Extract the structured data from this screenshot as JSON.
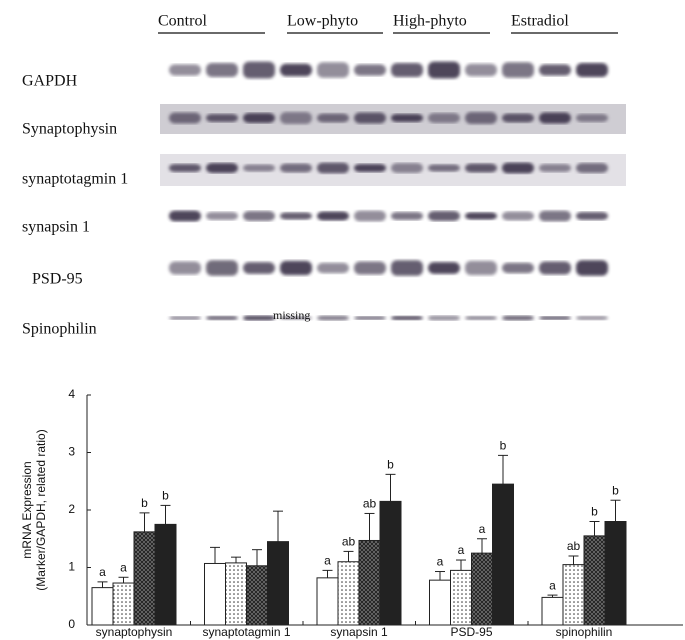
{
  "blot": {
    "groups": [
      "Control",
      "Low-phyto",
      "High-phyto",
      "Estradiol"
    ],
    "rows": [
      "GAPDH",
      "Synaptophysin",
      "synaptotagmin 1",
      "synapsin 1",
      "PSD-95",
      "Spinophilin"
    ],
    "annotation": "missing"
  },
  "chart_data": {
    "type": "bar",
    "ylabel": [
      "mRNA Expression",
      "(Marker/GAPDH, related ratio)"
    ],
    "categories": [
      "synaptophysin",
      "synaptotagmin 1",
      "synapsin 1",
      "PSD-95",
      "spinophilin"
    ],
    "ylim": [
      0,
      4
    ],
    "yticks": [
      0,
      1,
      2,
      3,
      4
    ],
    "series": [
      {
        "color": "#ffffff",
        "pattern": "none",
        "values": [
          0.65,
          1.07,
          0.82,
          0.78,
          0.48
        ],
        "errors": [
          0.1,
          0.28,
          0.13,
          0.15,
          0.04
        ],
        "labels": [
          "a",
          null,
          "a",
          "a",
          "a"
        ]
      },
      {
        "color": "#ffffff",
        "pattern": "dots",
        "values": [
          0.73,
          1.08,
          1.1,
          0.95,
          1.05
        ],
        "errors": [
          0.1,
          0.1,
          0.18,
          0.18,
          0.15
        ],
        "labels": [
          "a",
          null,
          "ab",
          "a",
          "ab"
        ]
      },
      {
        "color": "#555555",
        "pattern": "crosshatch",
        "values": [
          1.62,
          1.03,
          1.47,
          1.25,
          1.55
        ],
        "errors": [
          0.33,
          0.28,
          0.47,
          0.25,
          0.25
        ],
        "labels": [
          "b",
          null,
          "ab",
          "a",
          "b"
        ]
      },
      {
        "color": "#222222",
        "pattern": "none",
        "values": [
          1.75,
          1.45,
          2.15,
          2.45,
          1.8
        ],
        "errors": [
          0.33,
          0.53,
          0.47,
          0.5,
          0.37
        ],
        "labels": [
          "b",
          null,
          "b",
          "b",
          "b"
        ]
      }
    ]
  }
}
